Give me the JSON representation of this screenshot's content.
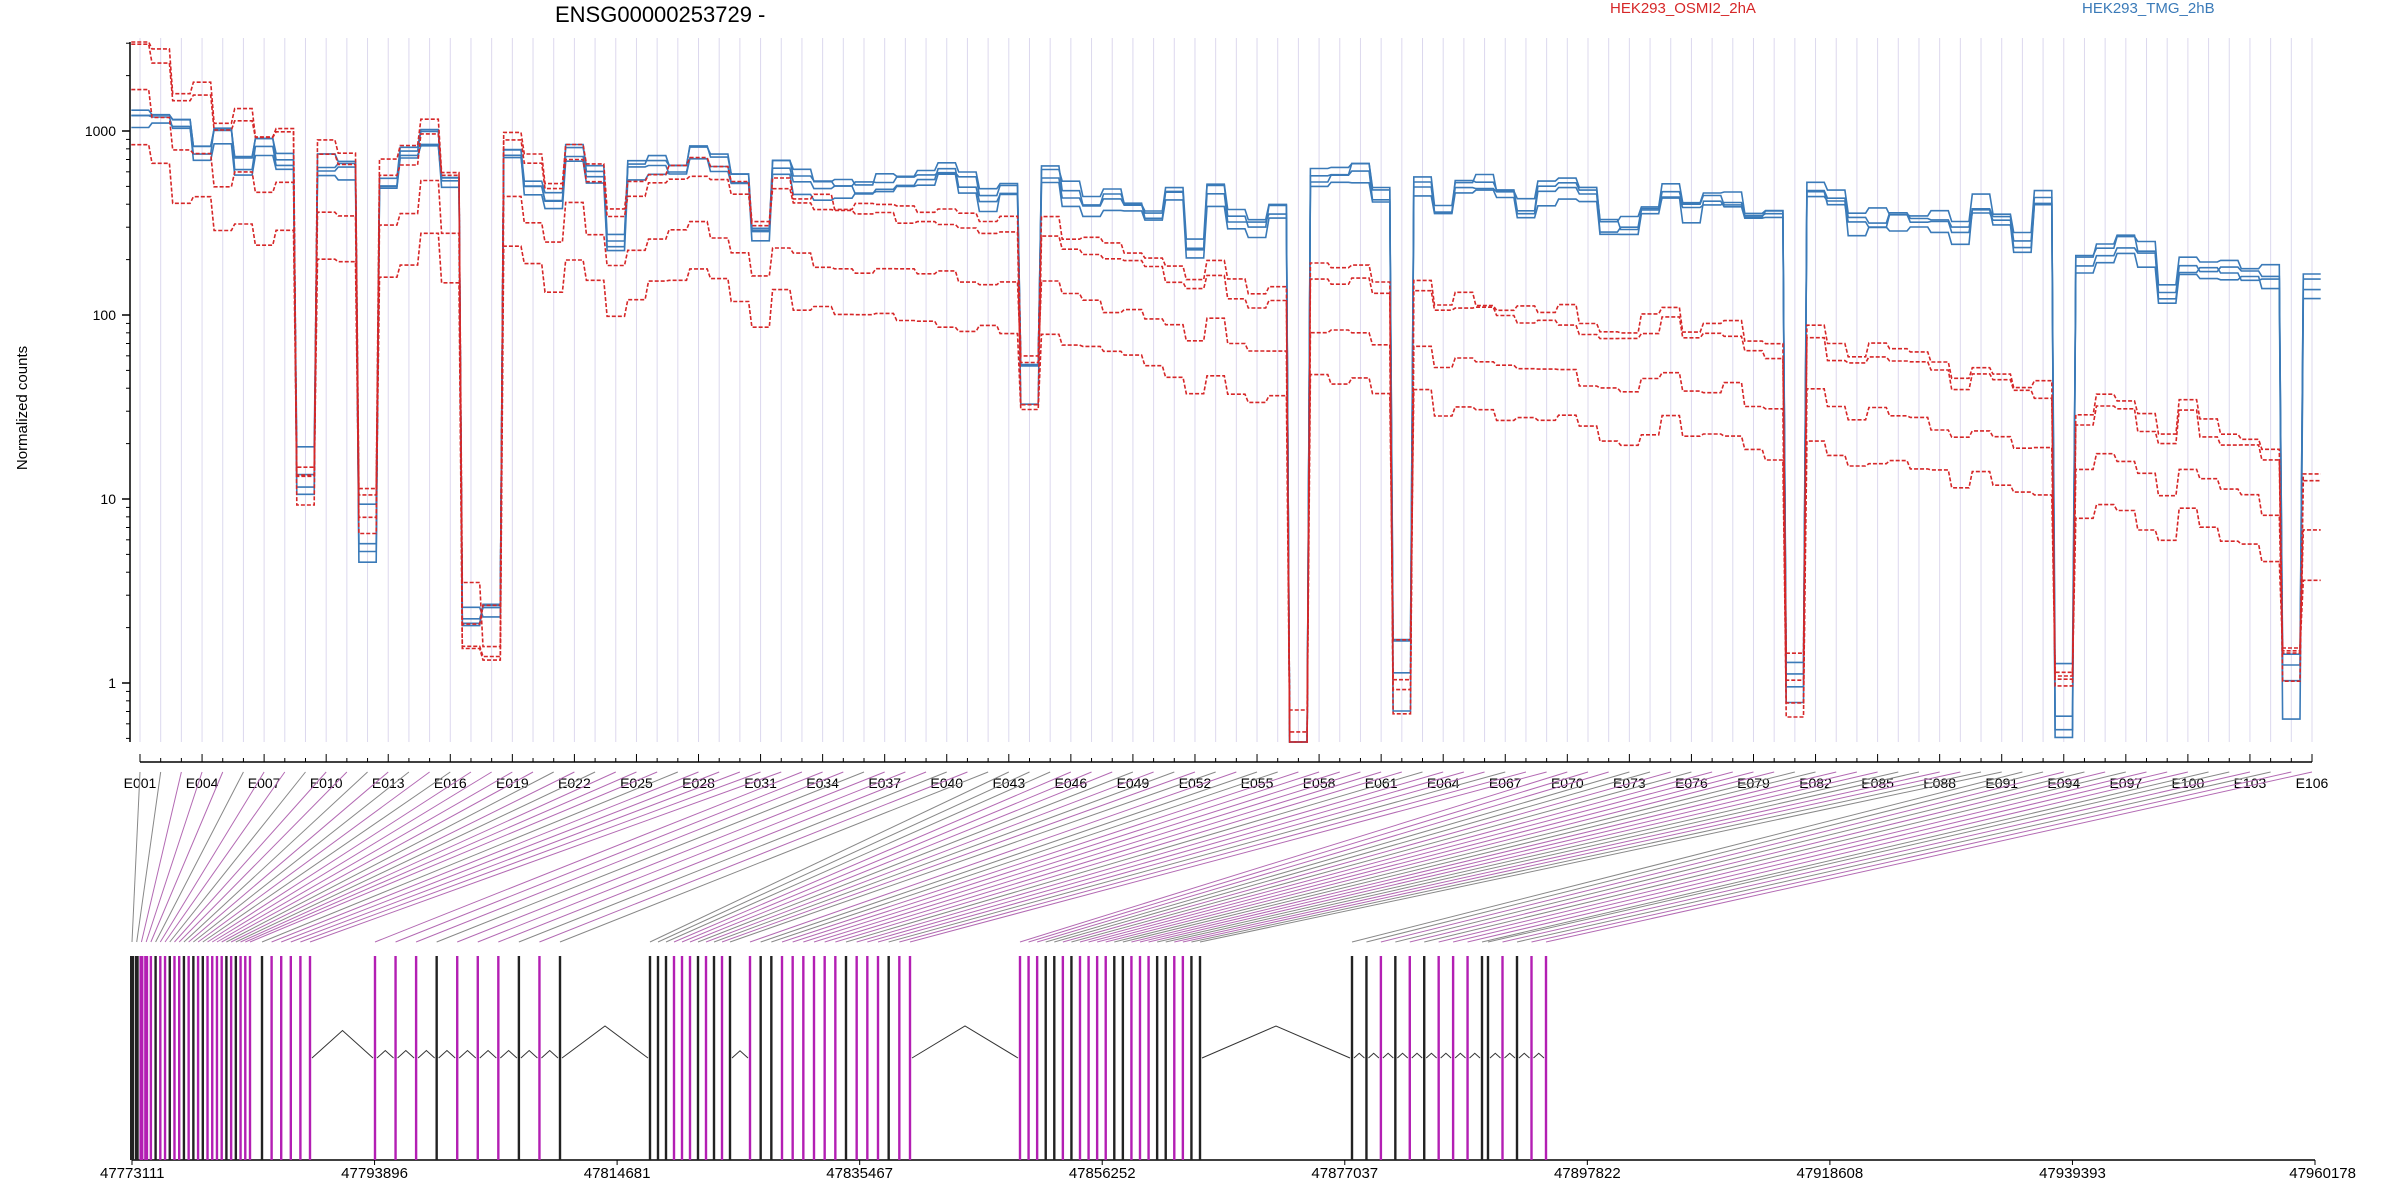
{
  "chart_data": {
    "type": "line",
    "title": "ENSG00000253729 -",
    "ylabel": "Normalized counts",
    "yscale": "log",
    "ylim": [
      0.4,
      5000
    ],
    "ytick_labels": [
      "1",
      "10",
      "100",
      "1000"
    ],
    "grid": "vertical per exon",
    "legend_placement": "top",
    "n_exons": 106,
    "x_tick_step": 3,
    "legend": [
      {
        "label": "HEK293_OSMI2_2hA",
        "color": "#d62728"
      },
      {
        "label": "HEK293_TMG_2hB",
        "color": "#3a7ab8"
      }
    ],
    "colors": {
      "treatment": "#d62728",
      "control": "#3a7ab8",
      "exon_highlight": "#b31fb3",
      "exon_plain": "#222222",
      "connector": "#b36ab3",
      "grid": "#dcd8ee"
    },
    "dropout_exons": {
      "E009": 14,
      "E012": 8,
      "E017": 2.5,
      "E018": 2,
      "E044": 45,
      "E057": 0.5,
      "E062": 1.2,
      "E081": 1.1,
      "E094": 0.9,
      "E105": 1.1
    },
    "control_level_by_exon": [
      [
        1,
        1150
      ],
      [
        3,
        1100
      ],
      [
        4,
        760
      ],
      [
        5,
        980
      ],
      [
        6,
        650
      ],
      [
        7,
        840
      ],
      [
        8,
        650
      ],
      [
        10,
        640
      ],
      [
        11,
        600
      ],
      [
        13,
        500
      ],
      [
        14,
        760
      ],
      [
        15,
        880
      ],
      [
        16,
        520
      ],
      [
        19,
        750
      ],
      [
        20,
        480
      ],
      [
        21,
        420
      ],
      [
        22,
        760
      ],
      [
        23,
        560
      ],
      [
        24,
        240
      ],
      [
        25,
        620
      ],
      [
        26,
        640
      ],
      [
        27,
        620
      ],
      [
        28,
        740
      ],
      [
        29,
        650
      ],
      [
        30,
        560
      ],
      [
        31,
        270
      ],
      [
        32,
        640
      ],
      [
        33,
        520
      ],
      [
        34,
        480
      ],
      [
        36,
        470
      ],
      [
        38,
        510
      ],
      [
        40,
        600
      ],
      [
        42,
        420
      ],
      [
        45,
        590
      ],
      [
        46,
        450
      ],
      [
        47,
        380
      ],
      [
        48,
        410
      ],
      [
        50,
        340
      ],
      [
        51,
        450
      ],
      [
        52,
        220
      ],
      [
        53,
        450
      ],
      [
        54,
        320
      ],
      [
        55,
        300
      ],
      [
        58,
        540
      ],
      [
        60,
        590
      ],
      [
        61,
        440
      ],
      [
        63,
        510
      ],
      [
        64,
        360
      ],
      [
        65,
        500
      ],
      [
        66,
        520
      ],
      [
        67,
        440
      ],
      [
        68,
        360
      ],
      [
        69,
        450
      ],
      [
        70,
        490
      ],
      [
        71,
        460
      ],
      [
        72,
        300
      ],
      [
        73,
        290
      ],
      [
        75,
        450
      ],
      [
        76,
        360
      ],
      [
        77,
        420
      ],
      [
        78,
        400
      ],
      [
        79,
        340
      ],
      [
        80,
        350
      ],
      [
        82,
        450
      ],
      [
        83,
        420
      ],
      [
        84,
        300
      ],
      [
        85,
        320
      ],
      [
        86,
        330
      ],
      [
        88,
        310
      ],
      [
        89,
        270
      ],
      [
        90,
        380
      ],
      [
        91,
        330
      ],
      [
        92,
        250
      ],
      [
        93,
        420
      ],
      [
        95,
        190
      ],
      [
        96,
        220
      ],
      [
        97,
        240
      ],
      [
        98,
        210
      ],
      [
        99,
        130
      ],
      [
        100,
        180
      ],
      [
        101,
        170
      ],
      [
        103,
        165
      ],
      [
        104,
        160
      ],
      [
        106,
        140
      ]
    ],
    "treatment_level_by_exon": [
      [
        1,
        3000
      ],
      [
        2,
        2300
      ],
      [
        3,
        1400
      ],
      [
        4,
        1450
      ],
      [
        5,
        960
      ],
      [
        6,
        1050
      ],
      [
        7,
        830
      ],
      [
        8,
        900
      ],
      [
        10,
        700
      ],
      [
        11,
        650
      ],
      [
        13,
        560
      ],
      [
        14,
        650
      ],
      [
        15,
        950
      ],
      [
        16,
        520
      ],
      [
        19,
        820
      ],
      [
        20,
        600
      ],
      [
        21,
        450
      ],
      [
        22,
        700
      ],
      [
        23,
        520
      ],
      [
        24,
        320
      ],
      [
        25,
        420
      ],
      [
        26,
        480
      ],
      [
        27,
        520
      ],
      [
        28,
        560
      ],
      [
        29,
        500
      ],
      [
        30,
        420
      ],
      [
        31,
        280
      ],
      [
        32,
        450
      ],
      [
        33,
        380
      ],
      [
        35,
        330
      ],
      [
        38,
        320
      ],
      [
        40,
        300
      ],
      [
        42,
        280
      ],
      [
        45,
        270
      ],
      [
        46,
        230
      ],
      [
        48,
        200
      ],
      [
        50,
        180
      ],
      [
        52,
        130
      ],
      [
        53,
        165
      ],
      [
        54,
        125
      ],
      [
        55,
        110
      ],
      [
        58,
        150
      ],
      [
        60,
        150
      ],
      [
        61,
        120
      ],
      [
        63,
        130
      ],
      [
        64,
        100
      ],
      [
        65,
        110
      ],
      [
        66,
        100
      ],
      [
        68,
        90
      ],
      [
        70,
        90
      ],
      [
        72,
        70
      ],
      [
        73,
        70
      ],
      [
        75,
        90
      ],
      [
        76,
        70
      ],
      [
        78,
        75
      ],
      [
        79,
        60
      ],
      [
        80,
        55
      ],
      [
        82,
        70
      ],
      [
        83,
        55
      ],
      [
        84,
        50
      ],
      [
        85,
        55
      ],
      [
        87,
        50
      ],
      [
        88,
        45
      ],
      [
        89,
        40
      ],
      [
        90,
        45
      ],
      [
        91,
        40
      ],
      [
        92,
        35
      ],
      [
        93,
        35
      ],
      [
        95,
        25
      ],
      [
        96,
        30
      ],
      [
        97,
        28
      ],
      [
        99,
        20
      ],
      [
        100,
        28
      ],
      [
        101,
        22
      ],
      [
        103,
        18
      ],
      [
        104,
        15
      ],
      [
        106,
        12
      ]
    ],
    "genome_axis": {
      "tick_labels": [
        "47773111",
        "47793896",
        "47814681",
        "47835467",
        "47856252",
        "47877037",
        "47897822",
        "47918608",
        "47939393",
        "47960178"
      ],
      "start": 47773111,
      "end": 47960178
    }
  }
}
